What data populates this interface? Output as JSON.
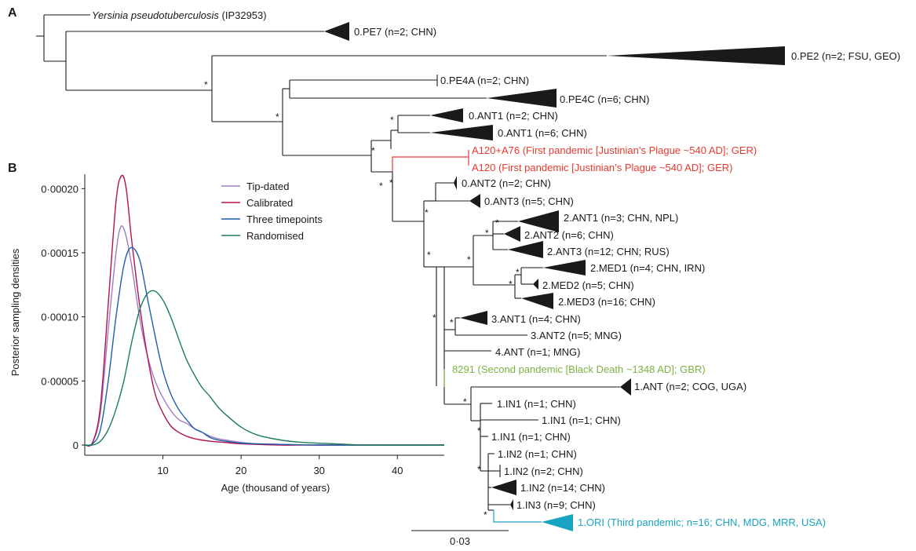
{
  "panels": {
    "a": "A",
    "b": "B"
  },
  "tree": {
    "outgroup": {
      "species": "Yersinia pseudotuberculosis",
      "strain": " (IP32953)"
    },
    "tips": {
      "pe7": "0.PE7 (n=2; CHN)",
      "pe2": "0.PE2 (n=2; FSU, GEO)",
      "pe4a": "0.PE4A (n=2; CHN)",
      "pe4c": "0.PE4C (n=6; CHN)",
      "ant1_a": "0.ANT1 (n=2; CHN)",
      "ant1_b": "0.ANT1 (n=6; CHN)",
      "a120_a76": "A120+A76 (First pandemic [Justinian’s Plague ~540 AD]; GER)",
      "a120": "A120 (First pandemic [Justinian’s Plague ~540 AD]; GER)",
      "ant2_0": "0.ANT2 (n=2; CHN)",
      "ant3_0": "0.ANT3 (n=5; CHN)",
      "ant1_2": "2.ANT1 (n=3; CHN, NPL)",
      "ant2_2": "2.ANT2 (n=6; CHN)",
      "ant3_2": "2.ANT3 (n=12; CHN; RUS)",
      "med1": "2.MED1 (n=4; CHN, IRN)",
      "med2": "2.MED2 (n=5; CHN)",
      "med3": "2.MED3 (n=16; CHN)",
      "ant1_3": "3.ANT1 (n=4; CHN)",
      "ant2_3": "3.ANT2 (n=5; MNG)",
      "ant_4": "4.ANT (n=1; MNG)",
      "bd8291": "8291 (Second pandemic [Black Death ~1348 AD]; GBR)",
      "ant_1": "1.ANT (n=2; COG, UGA)",
      "in1_a": "1.IN1 (n=1; CHN)",
      "in1_b": "1.IN1 (n=1; CHN)",
      "in1_c": "1.IN1 (n=1; CHN)",
      "in2_a": "1.IN2 (n=1; CHN)",
      "in2_b": "1.IN2 (n=2; CHN)",
      "in2_c": "1.IN2 (n=14; CHN)",
      "in3": "1.IN3 (n=9; CHN)",
      "ori": "1.ORI (Third pandemic; n=16; CHN, MDG, MRR, USA)"
    },
    "support_marker": "*",
    "scale_label": "0·03",
    "colors": {
      "black": "#1a1a1a",
      "first_pandemic": "#e8392f",
      "second_pandemic": "#7cb342",
      "third_pandemic": "#1aa3c0"
    }
  },
  "chart_data": {
    "type": "line",
    "title": "",
    "xlabel": "Age (thousand of years)",
    "ylabel": "Posterior sampling densities",
    "xlim": [
      0,
      46
    ],
    "ylim": [
      0,
      0.00021
    ],
    "xticks": [
      10,
      20,
      30,
      40
    ],
    "xtick_labels": [
      "10",
      "20",
      "30",
      "40"
    ],
    "yticks": [
      0,
      5e-05,
      0.0001,
      0.00015,
      0.0002
    ],
    "ytick_labels": [
      "0",
      "0·00005",
      "0·00010",
      "0·00015",
      "0·00020"
    ],
    "legend_position": "top-right",
    "series": [
      {
        "name": "Tip-dated",
        "color": "#a07cc5",
        "x": [
          0,
          1,
          2,
          3,
          4,
          4.6,
          5.2,
          6,
          7,
          8,
          9,
          10,
          11,
          12,
          13,
          14,
          15,
          16,
          17,
          18,
          20,
          22,
          25,
          30,
          35,
          46
        ],
        "y": [
          0,
          2e-06,
          2.5e-05,
          9e-05,
          0.00015,
          0.00017,
          0.000165,
          0.00014,
          0.0001,
          7e-05,
          5e-05,
          3.7e-05,
          2.7e-05,
          2e-05,
          1.7e-05,
          1.3e-05,
          1e-05,
          7e-06,
          5e-06,
          4e-06,
          2e-06,
          1e-06,
          5e-07,
          0,
          0,
          0
        ]
      },
      {
        "name": "Calibrated",
        "color": "#b0134f",
        "x": [
          0,
          1,
          2,
          3,
          4,
          4.7,
          5.3,
          6,
          7,
          8,
          9,
          10,
          11,
          12,
          13,
          14,
          16,
          18,
          20,
          25,
          30,
          46
        ],
        "y": [
          0,
          2e-06,
          3e-05,
          0.00011,
          0.00019,
          0.00021,
          0.0002,
          0.00016,
          0.00011,
          7e-05,
          4e-05,
          2.5e-05,
          1.5e-05,
          1e-05,
          7e-06,
          5e-06,
          3e-06,
          2e-06,
          1e-06,
          0,
          0,
          0
        ]
      },
      {
        "name": "Three timepoints",
        "color": "#1f5fa8",
        "x": [
          0,
          1,
          2,
          3,
          4,
          5,
          5.9,
          7,
          8,
          9,
          10,
          11,
          12,
          13,
          14,
          15,
          16,
          17,
          18,
          20,
          22,
          25,
          30,
          35,
          46
        ],
        "y": [
          0,
          1e-06,
          1.2e-05,
          5e-05,
          0.0001,
          0.00014,
          0.000154,
          0.000145,
          0.000115,
          8.5e-05,
          5.8e-05,
          4e-05,
          2.8e-05,
          2e-05,
          1.3e-05,
          1e-05,
          6e-06,
          4e-06,
          3e-06,
          1.5e-06,
          1e-06,
          5e-07,
          0,
          0,
          0
        ]
      },
      {
        "name": "Randomised",
        "color": "#1e7b5b",
        "x": [
          0,
          1,
          2,
          3,
          4,
          5,
          6,
          7,
          8,
          9,
          10,
          11,
          12,
          13,
          14,
          15,
          16,
          17,
          18,
          20,
          22,
          25,
          28,
          32,
          36,
          46
        ],
        "y": [
          0,
          0,
          3e-06,
          1.2e-05,
          2.8e-05,
          5e-05,
          8e-05,
          0.000105,
          0.000118,
          0.00012,
          0.000113,
          0.0001,
          8.3e-05,
          6.7e-05,
          5.5e-05,
          4.5e-05,
          3.8e-05,
          3e-05,
          2.4e-05,
          1.4e-05,
          8e-06,
          4e-06,
          2e-06,
          1e-06,
          0,
          0
        ]
      }
    ]
  }
}
